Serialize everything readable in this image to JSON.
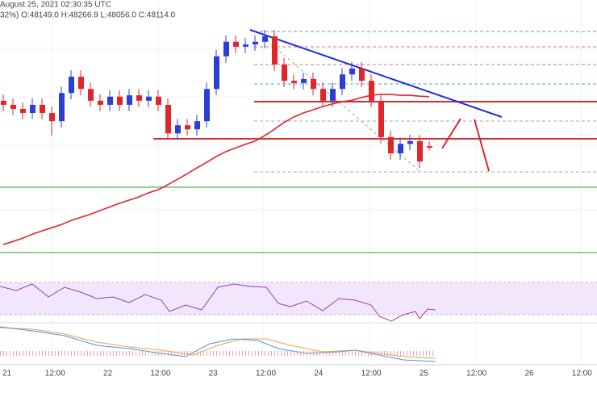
{
  "chart_data": {
    "type": "candlestick",
    "title": "August 25, 2021 02:30:35 UTC",
    "subtitle": "32%) O:48149.0 H:48266.9 L:48056.0 C:48114.0",
    "xtick_labels": [
      "21",
      "12:00",
      "22",
      "12:00",
      "23",
      "12:00",
      "24",
      "12:00",
      "25",
      "12:00",
      "26",
      "12:00"
    ],
    "ylim": [
      45680,
      51370
    ],
    "up_color": "#2b3fd6",
    "down_color": "#e0252b",
    "ma_color": "#e0252b",
    "open": [
      49150,
      49060,
      48970,
      48880,
      49060,
      48880,
      48700,
      49320,
      49680,
      49410,
      49150,
      49060,
      49240,
      49060,
      49270,
      49150,
      49240,
      49060,
      48430,
      48610,
      48520,
      48700,
      49410,
      50130,
      50450,
      50340,
      50390,
      50450,
      50570,
      49950,
      49590,
      49540,
      49630,
      49410,
      49150,
      49410,
      49730,
      49860,
      49590,
      49150,
      48350,
      47990,
      48200,
      48260,
      48149
    ],
    "high": [
      49290,
      49200,
      49110,
      49200,
      49200,
      49020,
      49460,
      49820,
      49820,
      49550,
      49290,
      49380,
      49380,
      49410,
      49410,
      49380,
      49380,
      49200,
      48750,
      48750,
      48840,
      49550,
      50270,
      50590,
      50590,
      50530,
      50590,
      50710,
      50710,
      50090,
      49730,
      49770,
      49770,
      49550,
      49550,
      49870,
      50000,
      50000,
      49730,
      49290,
      48490,
      48340,
      48400,
      48400,
      48266.9
    ],
    "low": [
      48920,
      48830,
      48740,
      48740,
      48740,
      48380,
      48560,
      49180,
      49270,
      49010,
      48920,
      48920,
      48920,
      48920,
      49010,
      49010,
      48920,
      48290,
      48290,
      48380,
      48380,
      48560,
      49270,
      49990,
      50200,
      50200,
      50250,
      50310,
      49810,
      49450,
      49400,
      49400,
      49270,
      49010,
      49010,
      49270,
      49590,
      49450,
      49010,
      48210,
      47850,
      47850,
      48060,
      47670,
      48056
    ],
    "close": [
      49060,
      48970,
      48880,
      49060,
      48880,
      48700,
      49320,
      49680,
      49410,
      49150,
      49060,
      49240,
      49060,
      49270,
      49150,
      49240,
      49060,
      48430,
      48610,
      48520,
      48700,
      49410,
      50130,
      50450,
      50340,
      50390,
      50450,
      50570,
      49950,
      49590,
      49540,
      49630,
      49410,
      49150,
      49410,
      49730,
      49860,
      49590,
      49150,
      48350,
      47990,
      48200,
      48260,
      47810,
      48114
    ],
    "ma": [
      45980,
      46050,
      46120,
      46210,
      46280,
      46350,
      46420,
      46510,
      46580,
      46650,
      46730,
      46810,
      46890,
      46960,
      47030,
      47120,
      47190,
      47300,
      47420,
      47540,
      47670,
      47790,
      47920,
      48030,
      48110,
      48190,
      48260,
      48380,
      48520,
      48670,
      48790,
      48880,
      48950,
      49020,
      49080,
      49130,
      49160,
      49220,
      49270,
      49290,
      49290,
      49270,
      49270,
      49250,
      49240
    ]
  }
}
